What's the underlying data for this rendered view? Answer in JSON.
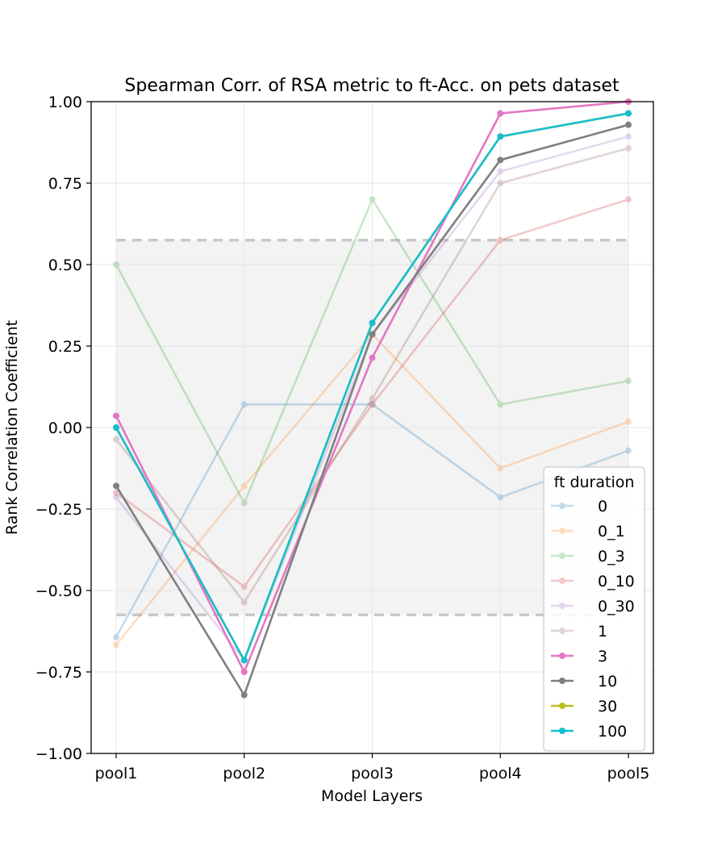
{
  "chart_data": {
    "type": "line",
    "title": "Spearman Corr. of RSA metric to ft-Acc. on pets dataset",
    "xlabel": "Model Layers",
    "ylabel": "Rank Correlation Coefficient",
    "categories": [
      "pool1",
      "pool2",
      "pool3",
      "pool4",
      "pool5"
    ],
    "ylim": [
      -1.0,
      1.0
    ],
    "yticks": [
      -1.0,
      -0.75,
      -0.5,
      -0.25,
      0.0,
      0.25,
      0.5,
      0.75,
      1.0
    ],
    "ytick_labels": [
      "−1.00",
      "−0.75",
      "−0.50",
      "−0.25",
      "0.00",
      "0.25",
      "0.50",
      "0.75",
      "1.00"
    ],
    "grid": true,
    "band": {
      "lower": -0.575,
      "upper": 0.575,
      "color": "#ebebeb"
    },
    "legend": {
      "title": "ft duration",
      "position": "lower right"
    },
    "series": [
      {
        "name": "0",
        "color": "#1f77b4",
        "alpha": 0.25,
        "values": [
          -0.643,
          0.071,
          0.071,
          -0.214,
          -0.071
        ]
      },
      {
        "name": "0_1",
        "color": "#ff7f0e",
        "alpha": 0.25,
        "values": [
          -0.667,
          -0.179,
          0.286,
          -0.125,
          0.018
        ]
      },
      {
        "name": "0_3",
        "color": "#2ca02c",
        "alpha": 0.25,
        "values": [
          0.5,
          -0.232,
          0.7,
          0.071,
          0.143
        ]
      },
      {
        "name": "0_10",
        "color": "#d62728",
        "alpha": 0.25,
        "values": [
          -0.2,
          -0.488,
          0.071,
          0.575,
          0.7
        ]
      },
      {
        "name": "0_30",
        "color": "#9467bd",
        "alpha": 0.25,
        "values": [
          -0.214,
          -0.714,
          0.286,
          0.786,
          0.893
        ]
      },
      {
        "name": "1",
        "color": "#8c564b",
        "alpha": 0.25,
        "values": [
          -0.036,
          -0.536,
          0.089,
          0.75,
          0.857
        ]
      },
      {
        "name": "3",
        "color": "#e377c2",
        "alpha": 1.0,
        "values": [
          0.036,
          -0.75,
          0.214,
          0.964,
          1.0
        ]
      },
      {
        "name": "10",
        "color": "#7f7f7f",
        "alpha": 1.0,
        "values": [
          -0.179,
          -0.821,
          0.286,
          0.821,
          0.929
        ]
      },
      {
        "name": "30",
        "color": "#bcbd22",
        "alpha": 1.0,
        "values": [
          0.0,
          -0.714,
          0.321,
          0.893,
          0.964
        ]
      },
      {
        "name": "100",
        "color": "#17becf",
        "alpha": 1.0,
        "values": [
          0.0,
          -0.714,
          0.321,
          0.893,
          0.964
        ]
      }
    ]
  }
}
